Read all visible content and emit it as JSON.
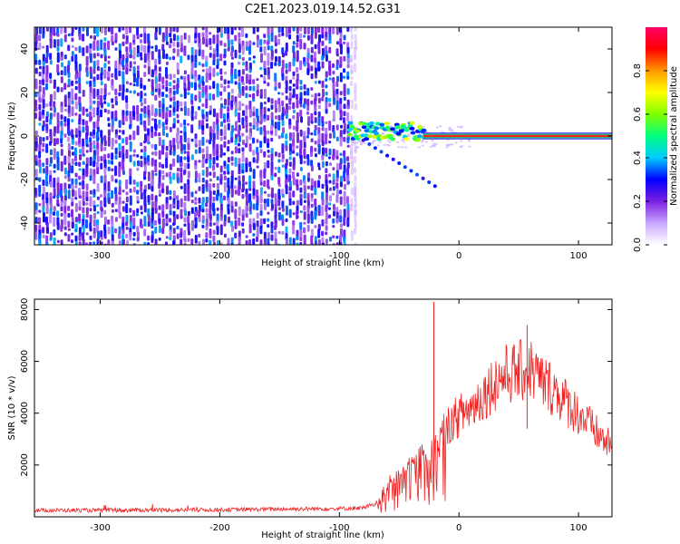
{
  "figure": {
    "title": "C2E1.2023.019.14.52.G31"
  },
  "chart_data": [
    {
      "type": "heatmap",
      "title": "C2E1.2023.019.14.52.G31",
      "xlabel": "Height of straight line (km)",
      "ylabel": "Frequency (Hz)",
      "xlim": [
        -355,
        128
      ],
      "ylim": [
        -50,
        50
      ],
      "x_ticks": [
        -300,
        -200,
        -100,
        0,
        100
      ],
      "y_ticks": [
        -40,
        -20,
        0,
        20,
        40
      ],
      "colorbar": {
        "label": "Normalized spectral amplitude",
        "range": [
          0,
          1
        ],
        "ticks": [
          0.0,
          0.2,
          0.4,
          0.6,
          0.8
        ],
        "colormap": [
          "#ffffff",
          "#c8a6ff",
          "#7b1fe0",
          "#0000ff",
          "#00ccff",
          "#00ff80",
          "#7fff00",
          "#ffff00",
          "#ff9900",
          "#ff0000",
          "#ff0066"
        ]
      },
      "regions": [
        {
          "description": "broadband noise",
          "x_range": [
            -355,
            -92
          ],
          "freq_range": [
            -50,
            50
          ],
          "amplitude": 0.3
        },
        {
          "description": "signal onset",
          "x_range": [
            -92,
            -30
          ],
          "freq_center": 2,
          "amplitude": 0.55
        },
        {
          "description": "carrier line",
          "x_range": [
            -30,
            128
          ],
          "freq_center": 0,
          "amplitude": 0.95
        },
        {
          "description": "descending branch",
          "x_range": [
            -80,
            -20
          ],
          "freq_from": -2,
          "freq_to": -23,
          "amplitude": 0.25
        }
      ],
      "colors": {
        "noise": "#7b1fe0",
        "line_core": "#ff2020",
        "line_edge": "#00d080"
      }
    },
    {
      "type": "line",
      "xlabel": "Height of straight line (km)",
      "ylabel": "SNR (10 * v/v)",
      "xlim": [
        -355,
        128
      ],
      "ylim": [
        0,
        8400
      ],
      "x_ticks": [
        -300,
        -200,
        -100,
        0,
        100
      ],
      "y_ticks": [
        2000,
        4000,
        6000,
        8000
      ],
      "series": [
        {
          "color": "#ee2222",
          "x": [
            -355,
            -300,
            -250,
            -200,
            -150,
            -120,
            -100,
            -80,
            -70,
            -60,
            -50,
            -40,
            -30,
            -20,
            -10,
            0,
            10,
            20,
            30,
            40,
            50,
            60,
            70,
            80,
            90,
            100,
            110,
            120,
            128
          ],
          "values": [
            250,
            250,
            260,
            270,
            300,
            310,
            320,
            340,
            500,
            1200,
            1700,
            2000,
            2500,
            2600,
            3500,
            3900,
            4200,
            4700,
            5200,
            5500,
            5600,
            5700,
            5200,
            4900,
            4400,
            4000,
            3500,
            3000,
            2700
          ],
          "spikes": [
            {
              "x": -21,
              "y": 8300
            },
            {
              "x": 57,
              "y": 7400
            }
          ]
        }
      ]
    }
  ]
}
